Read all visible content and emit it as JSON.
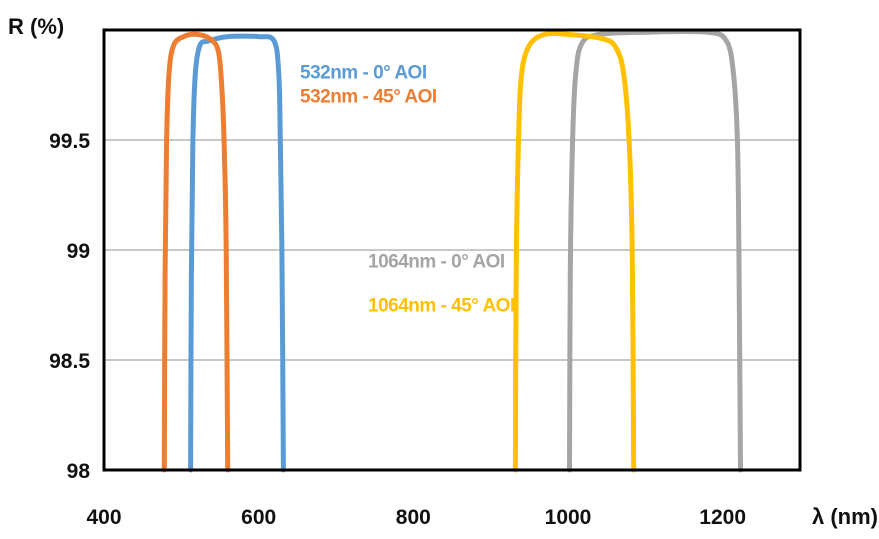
{
  "chart_data": {
    "type": "line",
    "title": "",
    "xlabel": "λ (nm)",
    "ylabel": "R (%)",
    "xlim": [
      400,
      1300
    ],
    "ylim": [
      98,
      100
    ],
    "x_ticks": [
      400,
      600,
      800,
      1000,
      1200
    ],
    "y_ticks": [
      98,
      98.5,
      99,
      99.5
    ],
    "grid": "horizontal",
    "legend": "inline labels",
    "series": [
      {
        "name": "532nm - 0° AOI",
        "color": "#5b9bd5",
        "x": [
          512,
          513,
          515,
          518,
          524,
          535,
          560,
          600,
          620,
          626,
          628,
          630,
          632
        ],
        "y": [
          98,
          98.9,
          99.5,
          99.8,
          99.93,
          99.95,
          99.97,
          99.97,
          99.95,
          99.8,
          99.5,
          99.0,
          98
        ],
        "label_x": 300,
        "label_y": 99.78
      },
      {
        "name": "532nm - 45° AOI",
        "color": "#ed7d31",
        "x": [
          478,
          479,
          481,
          484,
          490,
          503,
          520,
          537,
          548,
          553,
          556,
          558,
          560
        ],
        "y": [
          98,
          98.9,
          99.5,
          99.8,
          99.93,
          99.97,
          99.98,
          99.96,
          99.9,
          99.7,
          99.4,
          99.0,
          98
        ],
        "label_x": 300,
        "label_y": 99.67
      },
      {
        "name": "1064nm - 0° AOI",
        "color": "#a5a5a5",
        "x": [
          1002,
          1003,
          1006,
          1010,
          1018,
          1040,
          1100,
          1180,
          1205,
          1214,
          1219,
          1221,
          1223
        ],
        "y": [
          98,
          98.9,
          99.5,
          99.8,
          99.94,
          99.98,
          99.99,
          99.99,
          99.95,
          99.8,
          99.5,
          99.0,
          98
        ],
        "label_x": 368,
        "label_y": 98.92
      },
      {
        "name": "1064nm - 45° AOI",
        "color": "#ffc000",
        "x": [
          932,
          933,
          936,
          940,
          950,
          970,
          1000,
          1045,
          1062,
          1072,
          1079,
          1083,
          1085
        ],
        "y": [
          98,
          98.9,
          99.5,
          99.8,
          99.93,
          99.98,
          99.98,
          99.96,
          99.92,
          99.8,
          99.5,
          99.0,
          98
        ],
        "label_x": 368,
        "label_y": 98.72
      }
    ]
  }
}
